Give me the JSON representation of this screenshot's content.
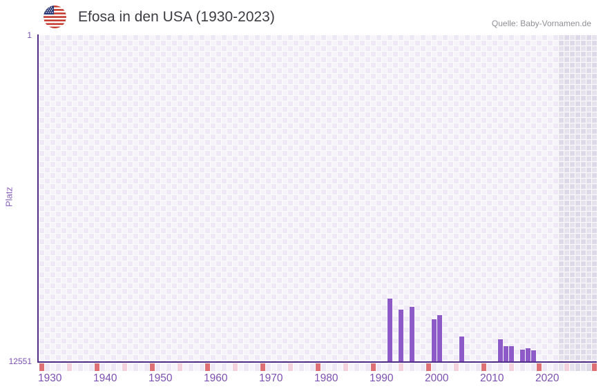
{
  "header": {
    "title": "Efosa in den USA (1930-2023)",
    "source": "Quelle: Baby-Vornamen.de",
    "flag_icon": "us-flag-icon"
  },
  "y_axis": {
    "title": "Platz",
    "top_label": "1",
    "bottom_label": "12551"
  },
  "x_axis": {
    "tick_labels": [
      "1930",
      "1940",
      "1950",
      "1960",
      "1970",
      "1980",
      "1990",
      "2000",
      "2010",
      "2020"
    ]
  },
  "colors": {
    "bar": "#8d5ac8",
    "axis": "#4e2c86",
    "tick_major_red": "#dd6f75",
    "tick_minor_pink": "#f3d0db",
    "label_purple": "#7b4fb2",
    "cell_light": "#f6f3fb",
    "cell_dark": "#ede7f6",
    "future_cell_light": "#e6e3ef",
    "future_cell_dark": "#ddd9e8",
    "flag_red": "#c5392f",
    "flag_blue": "#2a3875"
  },
  "chart_data": {
    "type": "bar",
    "title": "Efosa in den USA (1930-2023)",
    "ylabel": "Platz",
    "y_inverted": true,
    "ylim": [
      1,
      12551
    ],
    "x_start_year": 1930,
    "x_end_year": 2030,
    "data_end_year": 2023,
    "greyed_from_year": 2024,
    "tick_interval_major": 10,
    "tick_interval_minor": 5,
    "grid": true,
    "points": [
      {
        "year": 1993,
        "rank": 10150
      },
      {
        "year": 1995,
        "rank": 10570
      },
      {
        "year": 1997,
        "rank": 10470
      },
      {
        "year": 2001,
        "rank": 10930
      },
      {
        "year": 2002,
        "rank": 10770
      },
      {
        "year": 2006,
        "rank": 11590
      },
      {
        "year": 2013,
        "rank": 11700
      },
      {
        "year": 2014,
        "rank": 11960
      },
      {
        "year": 2015,
        "rank": 11960
      },
      {
        "year": 2017,
        "rank": 12090
      },
      {
        "year": 2018,
        "rank": 12050
      },
      {
        "year": 2019,
        "rank": 12120
      }
    ]
  }
}
